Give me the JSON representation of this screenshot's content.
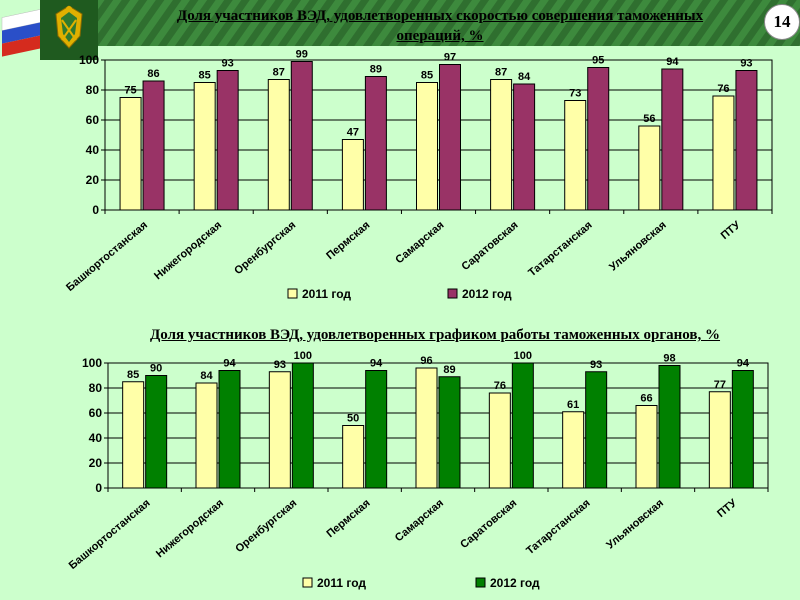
{
  "slide": {
    "page_number": "14",
    "logo_icon": "customs-emblem-with-russian-flag-icon",
    "colors": {
      "background": "#ccffcc",
      "header_stripe": "#2f6f2f",
      "series_2011": "#ffffa8",
      "series_2012_chart1": "#993366",
      "series_2012_chart2": "#008000"
    }
  },
  "chart_data": [
    {
      "type": "bar",
      "title": "Доля участников ВЭД, удовлетворенных скоростью совершения таможенных операций, %",
      "categories": [
        "Башкортостанская",
        "Нижегородская",
        "Оренбургская",
        "Пермская",
        "Самарская",
        "Саратовская",
        "Татарстанская",
        "Ульяновская",
        "ПТУ"
      ],
      "series": [
        {
          "name": "2011 год",
          "color": "#ffffa8",
          "values": [
            75,
            85,
            87,
            47,
            85,
            87,
            73,
            56,
            76
          ]
        },
        {
          "name": "2012 год",
          "color": "#993366",
          "values": [
            86,
            93,
            99,
            89,
            97,
            84,
            95,
            94,
            93
          ]
        }
      ],
      "ylim": [
        0,
        100
      ],
      "yticks": [
        0,
        20,
        40,
        60,
        80,
        100
      ],
      "grid": true,
      "legend_position": "bottom"
    },
    {
      "type": "bar",
      "title": "Доля участников ВЭД, удовлетворенных графиком работы таможенных органов, %",
      "categories": [
        "Башкортостанская",
        "Нижегородская",
        "Оренбургская",
        "Пермская",
        "Самарская",
        "Саратовская",
        "Татарстанская",
        "Ульяновская",
        "ПТУ"
      ],
      "series": [
        {
          "name": "2011 год",
          "color": "#ffffa8",
          "values": [
            85,
            84,
            93,
            50,
            96,
            76,
            61,
            66,
            77
          ]
        },
        {
          "name": "2012 год",
          "color": "#008000",
          "values": [
            90,
            94,
            100,
            94,
            89,
            100,
            93,
            98,
            94
          ]
        }
      ],
      "ylim": [
        0,
        100
      ],
      "yticks": [
        0,
        20,
        40,
        60,
        80,
        100
      ],
      "grid": true,
      "legend_position": "bottom"
    }
  ]
}
